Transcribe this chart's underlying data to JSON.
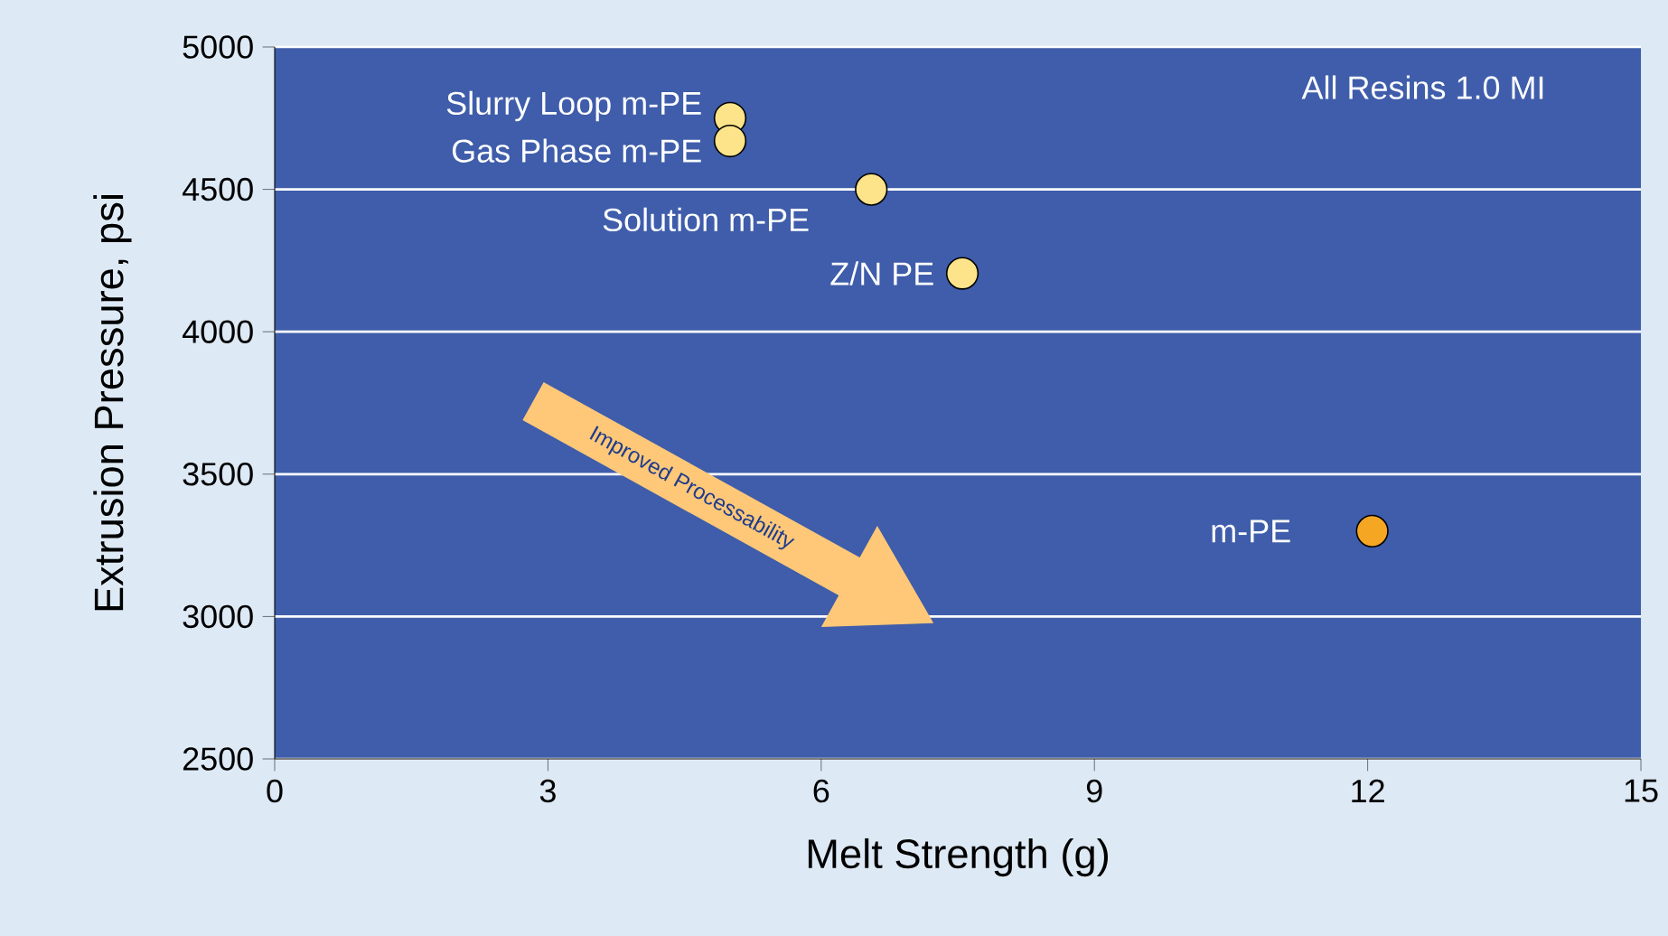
{
  "chart_data": {
    "type": "scatter",
    "xlabel": "Melt Strength (g)",
    "ylabel": "Extrusion Pressure, psi",
    "xlim": [
      0,
      15
    ],
    "xticks": [
      0,
      3,
      6,
      9,
      12,
      15
    ],
    "ylim": [
      2500,
      5000
    ],
    "yticks": [
      2500,
      3000,
      3500,
      4000,
      4500,
      5000
    ],
    "grid": "y",
    "legend": false,
    "marker": "circle",
    "series": [
      {
        "name": "Slurry Loop m-PE",
        "color": "#fde48a",
        "x": [
          5.0
        ],
        "values": [
          4750
        ]
      },
      {
        "name": "Gas Phase m-PE",
        "color": "#fde48a",
        "x": [
          5.0
        ],
        "values": [
          4670
        ]
      },
      {
        "name": "Solution m-PE",
        "color": "#fde48a",
        "x": [
          6.55
        ],
        "values": [
          4500
        ]
      },
      {
        "name": "Z/N PE",
        "color": "#fde48a",
        "x": [
          7.55
        ],
        "values": [
          4205
        ]
      },
      {
        "name": "m-PE",
        "color": "#f5a623",
        "x": [
          12.05
        ],
        "values": [
          3300
        ]
      }
    ],
    "annotations": [
      "All Resins 1.0 MI",
      "Improved Processability"
    ]
  }
}
